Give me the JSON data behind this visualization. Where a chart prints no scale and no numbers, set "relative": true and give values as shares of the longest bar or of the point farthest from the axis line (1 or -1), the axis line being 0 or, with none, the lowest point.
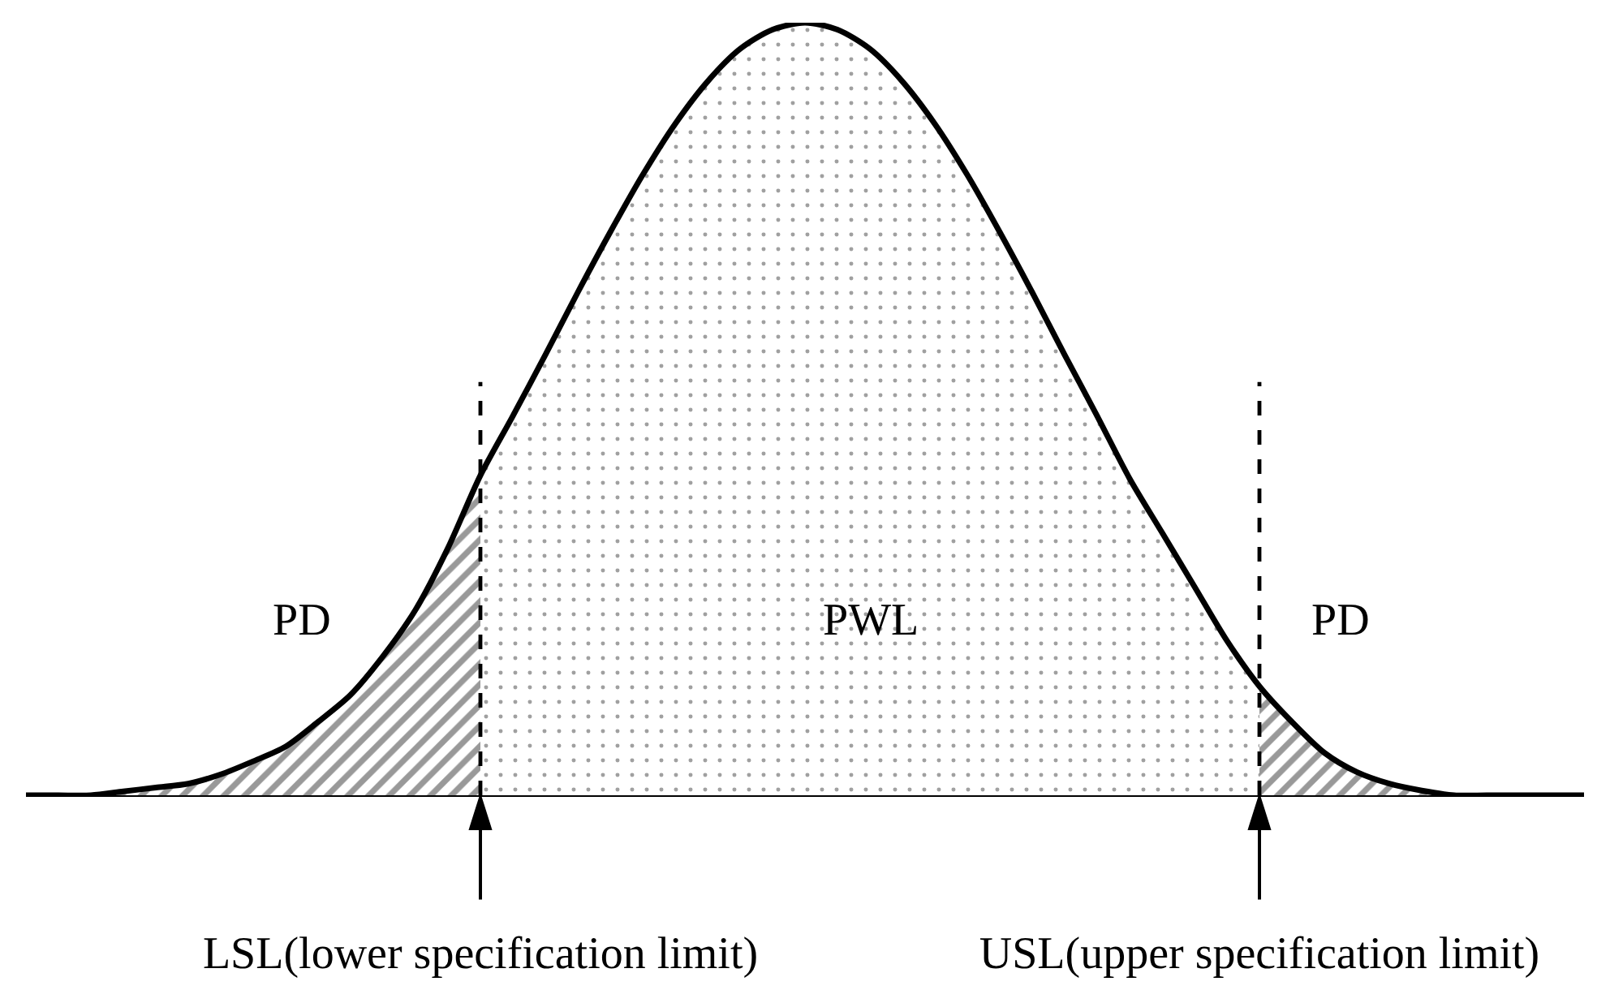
{
  "chart_data": {
    "type": "area",
    "relative": true,
    "categories": [
      null,
      null,
      null,
      null,
      null,
      null,
      null,
      null,
      null,
      null,
      null,
      null,
      null,
      null,
      "LSL(lower specification limit)",
      null,
      null,
      null,
      null,
      null,
      null,
      null,
      null,
      null,
      null,
      null,
      null,
      null,
      null,
      null,
      null,
      null,
      null,
      null,
      null,
      null,
      null,
      null,
      "USL(upper specification limit)",
      null,
      null,
      null,
      null,
      null,
      null,
      null,
      null,
      null,
      null
    ],
    "series": [
      {
        "type": "line",
        "color": "#000000",
        "values": [
          0,
          0,
          0,
          0.005,
          0.01,
          0.015,
          0.027,
          0.044,
          0.063,
          0.095,
          0.13,
          0.18,
          0.24,
          0.32,
          0.414,
          0.491,
          0.57,
          0.651,
          0.729,
          0.803,
          0.869,
          0.924,
          0.966,
          0.991,
          1,
          0.991,
          0.966,
          0.924,
          0.869,
          0.803,
          0.729,
          0.651,
          0.57,
          0.491,
          0.41,
          0.34,
          0.27,
          0.2,
          0.141,
          0.095,
          0.055,
          0.03,
          0.015,
          0.006,
          0,
          0,
          0,
          0,
          0
        ]
      },
      {
        "name": "PD",
        "color": "#999999",
        "values": [
          0,
          0,
          0,
          0.005,
          0.01,
          0.015,
          0.027,
          0.044,
          0.063,
          0.095,
          0.13,
          0.18,
          0.24,
          0.32,
          0.414,
          null,
          null,
          null,
          null,
          null,
          null,
          null,
          null,
          null,
          null,
          null,
          null,
          null,
          null,
          null,
          null,
          null,
          null,
          null,
          null,
          null,
          null,
          null,
          null,
          null,
          null,
          null,
          null,
          null,
          null,
          null,
          null,
          null,
          null
        ]
      },
      {
        "name": "PWL",
        "color": "#a0a0a0",
        "values": [
          null,
          null,
          null,
          null,
          null,
          null,
          null,
          null,
          null,
          null,
          null,
          null,
          null,
          null,
          0.414,
          0.491,
          0.57,
          0.651,
          0.729,
          0.803,
          0.869,
          0.924,
          0.966,
          0.991,
          1,
          0.991,
          0.966,
          0.924,
          0.869,
          0.803,
          0.729,
          0.651,
          0.57,
          0.491,
          0.41,
          0.34,
          0.27,
          0.2,
          0.141,
          null,
          null,
          null,
          null,
          null,
          null,
          null,
          null,
          null,
          null
        ]
      },
      {
        "name": "PD",
        "color": "#999999",
        "values": [
          null,
          null,
          null,
          null,
          null,
          null,
          null,
          null,
          null,
          null,
          null,
          null,
          null,
          null,
          null,
          null,
          null,
          null,
          null,
          null,
          null,
          null,
          null,
          null,
          null,
          null,
          null,
          null,
          null,
          null,
          null,
          null,
          null,
          null,
          null,
          null,
          null,
          null,
          0.141,
          0.095,
          0.055,
          0.03,
          0.015,
          0.006,
          0,
          0,
          0,
          0,
          0
        ]
      }
    ],
    "ref_lines": [
      {
        "axis": "x",
        "value": "LSL(lower specification limit)",
        "line_style": "dashed",
        "color": "#000000"
      },
      {
        "axis": "x",
        "value": "USL(upper specification limit)",
        "line_style": "dashed",
        "color": "#000000"
      }
    ]
  }
}
